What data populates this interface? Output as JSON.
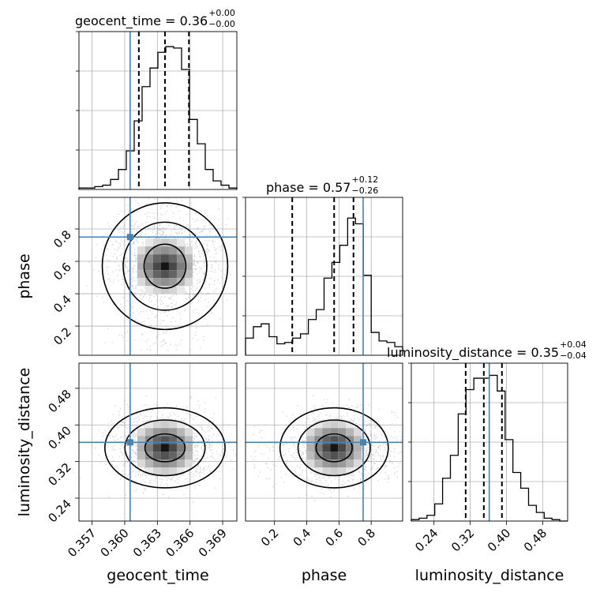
{
  "chart_data": {
    "type": "corner",
    "parameters": [
      "geocent_time",
      "phase",
      "luminosity_distance"
    ],
    "truths": {
      "geocent_time": 0.3605,
      "phase": 0.75,
      "luminosity_distance": 0.362
    },
    "colors": {
      "truth": "#4682b4",
      "hist": "#000000",
      "grid": "#b0b0b0",
      "points": "#9a9a9a"
    },
    "titles": [
      {
        "name": "geocent_time",
        "eq": "geocent_time = 0.36",
        "upper": "+0.00",
        "lower": "−0.00"
      },
      {
        "name": "phase",
        "eq": "phase = 0.57",
        "upper": "+0.12",
        "lower": "−0.26"
      },
      {
        "name": "luminosity_distance",
        "eq": "luminosity_distance = 0.35",
        "upper": "+0.04",
        "lower": "−0.04"
      }
    ],
    "axes": {
      "geocent_time": {
        "range": [
          0.3558,
          0.3703
        ],
        "ticks": [
          0.357,
          0.36,
          0.363,
          0.366,
          0.369
        ],
        "tick_labels": [
          "0.357",
          "0.360",
          "0.363",
          "0.366",
          "0.369"
        ],
        "label": "geocent_time"
      },
      "phase": {
        "range": [
          0.02,
          0.995
        ],
        "ticks": [
          0.2,
          0.4,
          0.6,
          0.8
        ],
        "tick_labels": [
          "0.2",
          "0.4",
          "0.6",
          "0.8"
        ],
        "label": "phase"
      },
      "luminosity_distance": {
        "range": [
          0.19,
          0.535
        ],
        "ticks": [
          0.24,
          0.32,
          0.4,
          0.48
        ],
        "tick_labels": [
          "0.24",
          "0.32",
          "0.40",
          "0.48"
        ],
        "label": "luminosity_distance"
      }
    },
    "quantiles": {
      "geocent_time": [
        0.3613,
        0.3637,
        0.3659
      ],
      "phase": [
        0.31,
        0.57,
        0.69
      ],
      "luminosity_distance": [
        0.31,
        0.35,
        0.39
      ]
    },
    "histograms": {
      "geocent_time": {
        "edges_start": 0.3558,
        "bin_width": 0.000725,
        "counts": [
          0.01,
          0.01,
          0.02,
          0.03,
          0.07,
          0.14,
          0.27,
          0.48,
          0.72,
          0.85,
          0.96,
          1.0,
          0.99,
          0.84,
          0.49,
          0.32,
          0.14,
          0.06,
          0.03,
          0.01
        ]
      },
      "phase": {
        "edges_start": 0.02,
        "bin_width": 0.04875,
        "counts": [
          0.12,
          0.2,
          0.22,
          0.13,
          0.08,
          0.09,
          0.12,
          0.15,
          0.25,
          0.32,
          0.54,
          0.65,
          0.77,
          0.96,
          0.92,
          0.56,
          0.16,
          0.1,
          0.09,
          0.06
        ]
      },
      "luminosity_distance": {
        "edges_start": 0.19,
        "bin_width": 0.01725,
        "counts": [
          0.01,
          0.02,
          0.04,
          0.12,
          0.3,
          0.46,
          0.75,
          0.92,
          1.0,
          1.0,
          1.02,
          0.91,
          0.57,
          0.34,
          0.23,
          0.11,
          0.06,
          0.02,
          0.01,
          0.0
        ]
      }
    },
    "grid": true
  }
}
